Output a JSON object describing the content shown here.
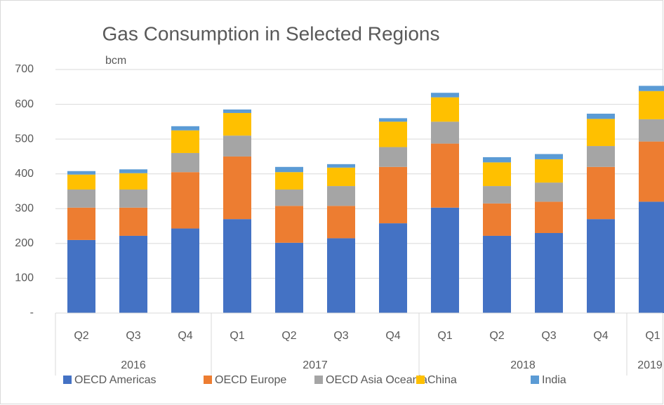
{
  "chart_data": {
    "type": "stacked_bar",
    "title": "Gas Consumption in Selected Regions",
    "y_unit_label": "bcm",
    "categories": [
      "Q2",
      "Q3",
      "Q4",
      "Q1",
      "Q2",
      "Q3",
      "Q4",
      "Q1",
      "Q2",
      "Q3",
      "Q4",
      "Q1"
    ],
    "year_groups": [
      {
        "label": "2016",
        "count": 3
      },
      {
        "label": "2017",
        "count": 4
      },
      {
        "label": "2018",
        "count": 4
      },
      {
        "label": "2019",
        "count": 1
      }
    ],
    "series": [
      {
        "name": "OECD Americas",
        "color": "#4472c4",
        "values": [
          210,
          222,
          243,
          270,
          202,
          215,
          258,
          303,
          222,
          230,
          270,
          320
        ]
      },
      {
        "name": "OECD Europe",
        "color": "#ed7d31",
        "values": [
          93,
          81,
          162,
          180,
          106,
          93,
          162,
          184,
          93,
          90,
          150,
          173
        ]
      },
      {
        "name": "OECD Asia Oceania",
        "color": "#a5a5a5",
        "values": [
          52,
          52,
          55,
          60,
          47,
          57,
          57,
          63,
          50,
          55,
          60,
          64
        ]
      },
      {
        "name": "China",
        "color": "#ffc000",
        "values": [
          43,
          47,
          65,
          65,
          50,
          53,
          73,
          70,
          68,
          67,
          78,
          81
        ]
      },
      {
        "name": "India",
        "color": "#5b9bd5",
        "values": [
          10,
          11,
          12,
          10,
          15,
          10,
          10,
          13,
          15,
          15,
          15,
          15
        ]
      }
    ],
    "ylim": [
      0,
      700
    ],
    "yticks": [
      {
        "value": 0,
        "label": "-"
      },
      100,
      200,
      300,
      400,
      500,
      600,
      700
    ],
    "grid": true,
    "legend": "bottom"
  }
}
